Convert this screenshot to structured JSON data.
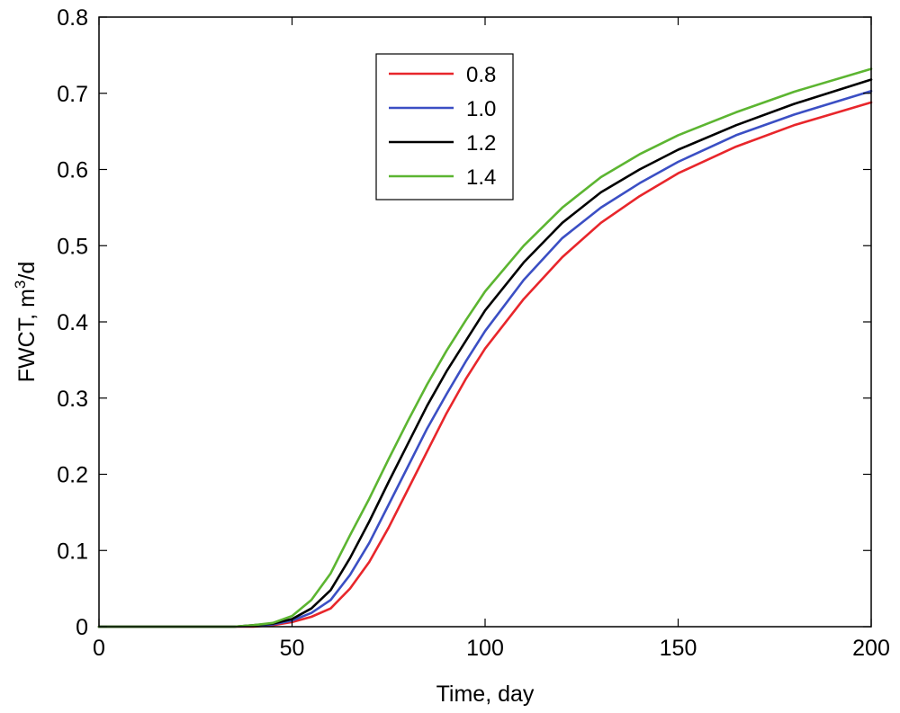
{
  "chart_data": {
    "type": "line",
    "title": "",
    "xlabel": "Time, day",
    "ylabel_prefix": "FWCT, m",
    "ylabel_superscript": "3",
    "ylabel_suffix": "/d",
    "xlim": [
      0,
      200
    ],
    "ylim": [
      0,
      0.8
    ],
    "x_ticks": [
      "0",
      "50",
      "100",
      "150",
      "200"
    ],
    "y_ticks": [
      "0",
      "0.1",
      "0.2",
      "0.3",
      "0.4",
      "0.5",
      "0.6",
      "0.7",
      "0.8"
    ],
    "grid": false,
    "legend_position": "top-center",
    "x": [
      0,
      35,
      40,
      45,
      50,
      55,
      60,
      65,
      70,
      75,
      80,
      85,
      90,
      95,
      100,
      110,
      120,
      130,
      140,
      150,
      165,
      180,
      200
    ],
    "series": [
      {
        "name": "0.8",
        "color": "#e8262b",
        "values": [
          0,
          0,
          0,
          0.002,
          0.006,
          0.013,
          0.024,
          0.05,
          0.085,
          0.13,
          0.18,
          0.23,
          0.28,
          0.325,
          0.365,
          0.43,
          0.485,
          0.53,
          0.565,
          0.595,
          0.63,
          0.658,
          0.688
        ]
      },
      {
        "name": "1.0",
        "color": "#3b4fc4",
        "values": [
          0,
          0,
          0.001,
          0.003,
          0.008,
          0.018,
          0.035,
          0.068,
          0.11,
          0.16,
          0.21,
          0.26,
          0.305,
          0.348,
          0.388,
          0.455,
          0.51,
          0.55,
          0.582,
          0.61,
          0.645,
          0.672,
          0.703
        ]
      },
      {
        "name": "1.2",
        "color": "#000000",
        "values": [
          0,
          0,
          0.002,
          0.004,
          0.01,
          0.024,
          0.048,
          0.09,
          0.138,
          0.19,
          0.24,
          0.29,
          0.335,
          0.375,
          0.415,
          0.478,
          0.53,
          0.57,
          0.6,
          0.626,
          0.658,
          0.686,
          0.718
        ]
      },
      {
        "name": "1.4",
        "color": "#5cb531",
        "values": [
          0,
          0,
          0.002,
          0.005,
          0.014,
          0.035,
          0.07,
          0.12,
          0.168,
          0.22,
          0.27,
          0.318,
          0.362,
          0.402,
          0.44,
          0.5,
          0.55,
          0.59,
          0.62,
          0.645,
          0.675,
          0.702,
          0.732
        ]
      }
    ]
  }
}
